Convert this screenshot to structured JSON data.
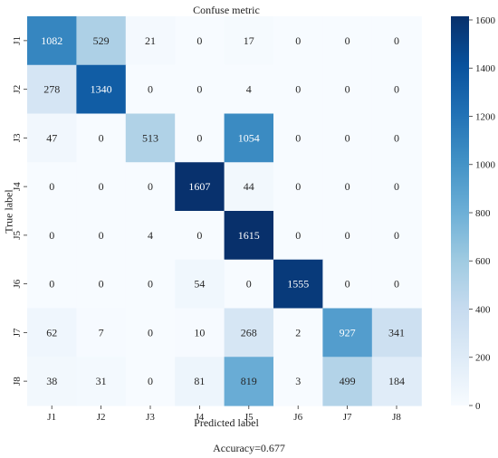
{
  "chart_data": {
    "type": "heatmap",
    "title": "Confuse metric",
    "xlabel": "Predicted label",
    "ylabel": "True label",
    "x_categories": [
      "J1",
      "J2",
      "J3",
      "J4",
      "J5",
      "J6",
      "J7",
      "J8"
    ],
    "y_categories": [
      "J1",
      "J2",
      "J3",
      "J4",
      "J5",
      "J6",
      "J7",
      "J8"
    ],
    "values": [
      [
        1082,
        529,
        21,
        0,
        17,
        0,
        0,
        0
      ],
      [
        278,
        1340,
        0,
        0,
        4,
        0,
        0,
        0
      ],
      [
        47,
        0,
        513,
        0,
        1054,
        0,
        0,
        0
      ],
      [
        0,
        0,
        0,
        1607,
        44,
        0,
        0,
        0
      ],
      [
        0,
        0,
        4,
        0,
        1615,
        0,
        0,
        0
      ],
      [
        0,
        0,
        0,
        54,
        0,
        1555,
        0,
        0
      ],
      [
        62,
        7,
        0,
        10,
        268,
        2,
        927,
        341
      ],
      [
        38,
        31,
        0,
        81,
        819,
        3,
        499,
        184
      ]
    ],
    "colorbar": {
      "min": 0,
      "max": 1615,
      "ticks": [
        0,
        200,
        400,
        600,
        800,
        1000,
        1200,
        1400,
        1600
      ]
    },
    "colormap": "Blues",
    "colors": {
      "low": "#f7fbff",
      "high": "#08306b"
    },
    "grid": false
  },
  "footer": "Accuracy=0.677"
}
